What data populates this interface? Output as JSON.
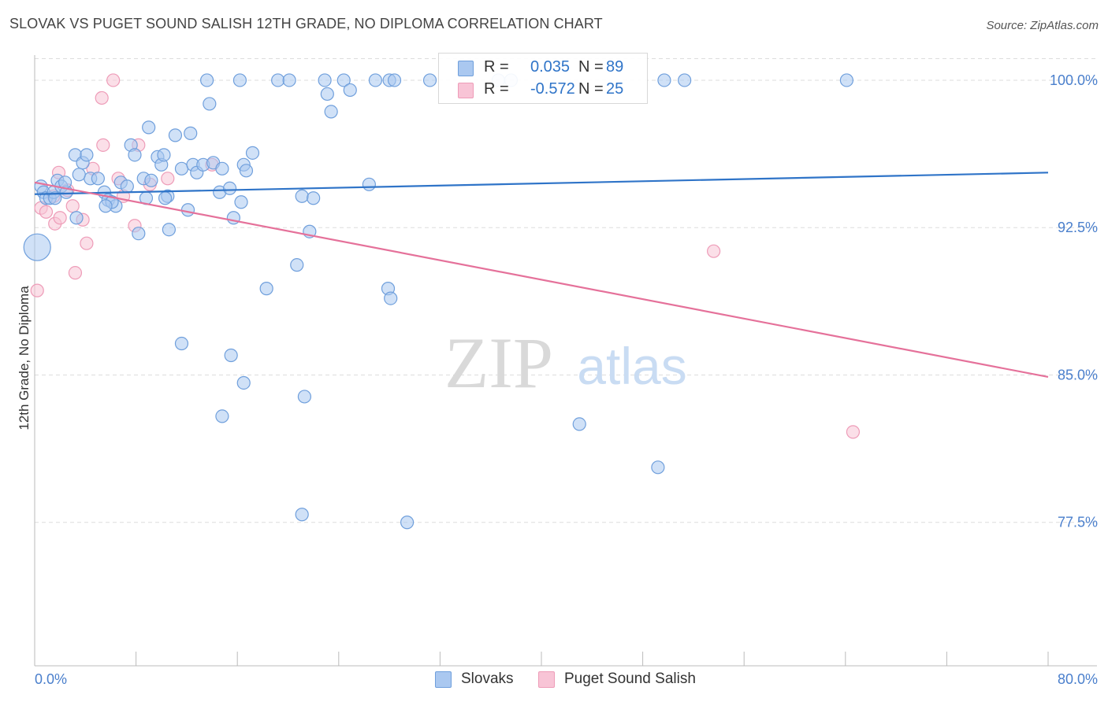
{
  "header": {
    "title": "SLOVAK VS PUGET SOUND SALISH 12TH GRADE, NO DIPLOMA CORRELATION CHART",
    "source": "Source: ZipAtlas.com"
  },
  "watermark": {
    "zip": "ZIP",
    "atlas": "atlas"
  },
  "legend": {
    "rows": [
      {
        "r_label": "R =",
        "r_value": "0.035",
        "n_label": "N =",
        "n_value": "89"
      },
      {
        "r_label": "R =",
        "r_value": "-0.572",
        "n_label": "N =",
        "n_value": "25"
      }
    ]
  },
  "bottom_legend": {
    "items": [
      {
        "label": "Slovaks"
      },
      {
        "label": "Puget Sound Salish"
      }
    ]
  },
  "colors": {
    "blue_fill": "#aac8f0",
    "blue_stroke": "#6f9fdc",
    "blue_line": "#2f74c8",
    "pink_fill": "#f8c4d6",
    "pink_stroke": "#ee9cb8",
    "pink_line": "#e5719a",
    "tick_text": "#4a7fcc",
    "grid": "#dddddd"
  },
  "chart_data": {
    "type": "scatter",
    "title": "SLOVAK VS PUGET SOUND SALISH 12TH GRADE, NO DIPLOMA CORRELATION CHART",
    "xlabel": "",
    "ylabel": "12th Grade, No Diploma",
    "xlim": [
      0,
      80
    ],
    "ylim": [
      70.2,
      101.2
    ],
    "x_tick_labels": [
      "0.0%",
      "80.0%"
    ],
    "y_ticks": [
      77.5,
      85.0,
      92.5,
      100.0
    ],
    "y_tick_labels": [
      "77.5%",
      "85.0%",
      "92.5%",
      "100.0%"
    ],
    "grid": "horizontal dashed",
    "legend_position": "top-center",
    "series": [
      {
        "name": "Slovaks",
        "R": 0.035,
        "N": 89,
        "trend": {
          "x": [
            0,
            80
          ],
          "y": [
            94.2,
            95.3
          ]
        },
        "points": [
          [
            0.2,
            91.5,
            "large"
          ],
          [
            0.5,
            94.6
          ],
          [
            0.7,
            94.3
          ],
          [
            0.9,
            94.0
          ],
          [
            1.2,
            94.0
          ],
          [
            1.5,
            94.3
          ],
          [
            1.8,
            94.9
          ],
          [
            2.1,
            94.6
          ],
          [
            2.5,
            94.3
          ],
          [
            3.2,
            96.2
          ],
          [
            3.8,
            95.8
          ],
          [
            4.4,
            95.0
          ],
          [
            3.5,
            95.2
          ],
          [
            4.1,
            96.2
          ],
          [
            5.0,
            95.0
          ],
          [
            5.5,
            94.3
          ],
          [
            5.8,
            93.9
          ],
          [
            6.4,
            93.6
          ],
          [
            6.8,
            94.8
          ],
          [
            7.3,
            94.6
          ],
          [
            7.6,
            96.7
          ],
          [
            7.9,
            96.2
          ],
          [
            8.2,
            92.2
          ],
          [
            8.6,
            95.0
          ],
          [
            8.8,
            94.0
          ],
          [
            9.2,
            94.9
          ],
          [
            9.0,
            97.6
          ],
          [
            9.7,
            96.1
          ],
          [
            10.0,
            95.7
          ],
          [
            10.2,
            96.2
          ],
          [
            10.5,
            94.1
          ],
          [
            10.6,
            92.4
          ],
          [
            11.1,
            97.2
          ],
          [
            11.6,
            95.5
          ],
          [
            12.1,
            93.4
          ],
          [
            12.3,
            97.3
          ],
          [
            12.5,
            95.7
          ],
          [
            12.8,
            95.3
          ],
          [
            13.3,
            95.7
          ],
          [
            14.1,
            95.8
          ],
          [
            14.6,
            94.3
          ],
          [
            14.8,
            95.5
          ],
          [
            15.4,
            94.5
          ],
          [
            15.7,
            93.0
          ],
          [
            16.3,
            93.8
          ],
          [
            16.5,
            95.7
          ],
          [
            16.7,
            95.4
          ],
          [
            17.2,
            96.3
          ],
          [
            13.6,
            100.0
          ],
          [
            13.8,
            98.8
          ],
          [
            16.2,
            100.0
          ],
          [
            19.2,
            100.0
          ],
          [
            20.1,
            100.0
          ],
          [
            22.9,
            100.0
          ],
          [
            23.1,
            99.3
          ],
          [
            23.4,
            98.4
          ],
          [
            24.4,
            100.0
          ],
          [
            24.9,
            99.5
          ],
          [
            26.9,
            100.0
          ],
          [
            28.0,
            100.0
          ],
          [
            28.4,
            100.0
          ],
          [
            31.2,
            100.0
          ],
          [
            36.6,
            100.0
          ],
          [
            37.6,
            100.0
          ],
          [
            49.7,
            100.0
          ],
          [
            51.3,
            100.0
          ],
          [
            64.1,
            100.0
          ],
          [
            20.7,
            90.6
          ],
          [
            18.3,
            89.4
          ],
          [
            21.1,
            94.1
          ],
          [
            21.7,
            92.3
          ],
          [
            22.0,
            94.0
          ],
          [
            26.4,
            94.7
          ],
          [
            27.9,
            89.4
          ],
          [
            28.1,
            88.9
          ],
          [
            11.6,
            86.6
          ],
          [
            15.5,
            86.0
          ],
          [
            16.5,
            84.6
          ],
          [
            21.3,
            83.9
          ],
          [
            14.8,
            82.9
          ],
          [
            43.0,
            82.5
          ],
          [
            49.2,
            80.3
          ],
          [
            21.1,
            77.9
          ],
          [
            29.4,
            77.5
          ],
          [
            1.6,
            94.0
          ],
          [
            3.3,
            93.0
          ],
          [
            2.4,
            94.8
          ],
          [
            6.1,
            93.8
          ],
          [
            5.6,
            93.6
          ],
          [
            10.3,
            94.0
          ]
        ]
      },
      {
        "name": "Puget Sound Salish",
        "R": -0.572,
        "N": 25,
        "trend": {
          "x": [
            0,
            80
          ],
          "y": [
            94.8,
            84.9
          ]
        },
        "points": [
          [
            0.2,
            89.3
          ],
          [
            0.5,
            93.5
          ],
          [
            0.9,
            93.3
          ],
          [
            1.5,
            94.1
          ],
          [
            1.6,
            92.7
          ],
          [
            1.9,
            95.3
          ],
          [
            2.0,
            93.0
          ],
          [
            2.6,
            94.4
          ],
          [
            3.0,
            93.6
          ],
          [
            3.2,
            90.2
          ],
          [
            3.8,
            92.9
          ],
          [
            4.1,
            91.7
          ],
          [
            4.6,
            95.5
          ],
          [
            5.3,
            99.1
          ],
          [
            5.4,
            96.7
          ],
          [
            6.2,
            100.0
          ],
          [
            6.6,
            95.0
          ],
          [
            7.0,
            94.1
          ],
          [
            7.9,
            92.6
          ],
          [
            8.2,
            96.7
          ],
          [
            9.1,
            94.7
          ],
          [
            10.5,
            95.0
          ],
          [
            14.0,
            95.7
          ],
          [
            53.6,
            91.3
          ],
          [
            64.6,
            82.1
          ]
        ]
      }
    ]
  }
}
